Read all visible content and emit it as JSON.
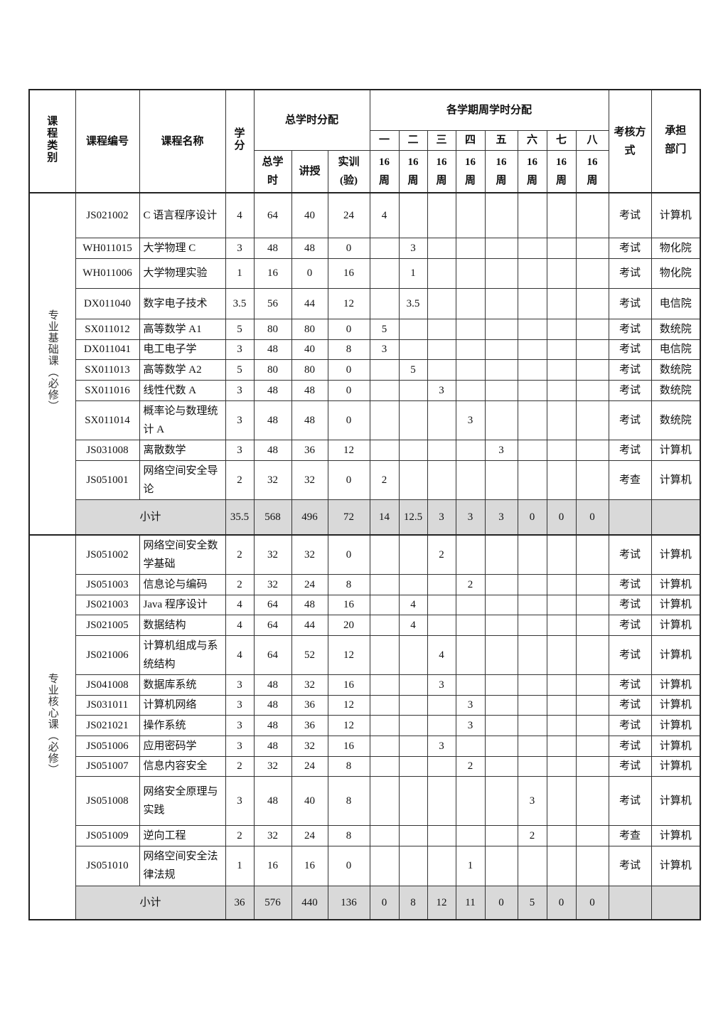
{
  "header": {
    "category": "课程类别",
    "code": "课程编号",
    "name": "课程名称",
    "credit": "学分",
    "total_group": "总学时分配",
    "total_hours": "总学时",
    "lecture": "讲授",
    "lab": "实训(验)",
    "semester_group": "各学期周学时分配",
    "semesters": [
      "一",
      "二",
      "三",
      "四",
      "五",
      "六",
      "七",
      "八"
    ],
    "weeks": [
      "16周",
      "16周",
      "16周",
      "16周",
      "16周",
      "16周",
      "16周",
      "16周"
    ],
    "exam": "考核方式",
    "dept": "承担部门"
  },
  "sections": [
    {
      "category": "专业基础课（必修）",
      "rows": [
        {
          "code": "JS021002",
          "name": "C 语言程序设计",
          "credit": "4",
          "total": "64",
          "lecture": "40",
          "lab": "24",
          "sem": [
            "4",
            "",
            "",
            "",
            "",
            "",
            "",
            ""
          ],
          "exam": "考试",
          "dept": "计算机"
        },
        {
          "code": "WH011015",
          "name": "大学物理 C",
          "credit": "3",
          "total": "48",
          "lecture": "48",
          "lab": "0",
          "sem": [
            "",
            "3",
            "",
            "",
            "",
            "",
            "",
            ""
          ],
          "exam": "考试",
          "dept": "物化院"
        },
        {
          "code": "WH011006",
          "name": "大学物理实验",
          "credit": "1",
          "total": "16",
          "lecture": "0",
          "lab": "16",
          "sem": [
            "",
            "1",
            "",
            "",
            "",
            "",
            "",
            ""
          ],
          "exam": "考试",
          "dept": "物化院"
        },
        {
          "code": "DX011040",
          "name": "数字电子技术",
          "credit": "3.5",
          "total": "56",
          "lecture": "44",
          "lab": "12",
          "sem": [
            "",
            "3.5",
            "",
            "",
            "",
            "",
            "",
            ""
          ],
          "exam": "考试",
          "dept": "电信院"
        },
        {
          "code": "SX011012",
          "name": "高等数学 A1",
          "credit": "5",
          "total": "80",
          "lecture": "80",
          "lab": "0",
          "sem": [
            "5",
            "",
            "",
            "",
            "",
            "",
            "",
            ""
          ],
          "exam": "考试",
          "dept": "数统院"
        },
        {
          "code": "DX011041",
          "name": "电工电子学",
          "credit": "3",
          "total": "48",
          "lecture": "40",
          "lab": "8",
          "sem": [
            "3",
            "",
            "",
            "",
            "",
            "",
            "",
            ""
          ],
          "exam": "考试",
          "dept": "电信院"
        },
        {
          "code": "SX011013",
          "name": "高等数学 A2",
          "credit": "5",
          "total": "80",
          "lecture": "80",
          "lab": "0",
          "sem": [
            "",
            "5",
            "",
            "",
            "",
            "",
            "",
            ""
          ],
          "exam": "考试",
          "dept": "数统院"
        },
        {
          "code": "SX011016",
          "name": "线性代数 A",
          "credit": "3",
          "total": "48",
          "lecture": "48",
          "lab": "0",
          "sem": [
            "",
            "",
            "3",
            "",
            "",
            "",
            "",
            ""
          ],
          "exam": "考试",
          "dept": "数统院"
        },
        {
          "code": "SX011014",
          "name": "概率论与数理统计 A",
          "credit": "3",
          "total": "48",
          "lecture": "48",
          "lab": "0",
          "sem": [
            "",
            "",
            "",
            "3",
            "",
            "",
            "",
            ""
          ],
          "exam": "考试",
          "dept": "数统院"
        },
        {
          "code": "JS031008",
          "name": "离散数学",
          "credit": "3",
          "total": "48",
          "lecture": "36",
          "lab": "12",
          "sem": [
            "",
            "",
            "",
            "",
            "3",
            "",
            "",
            ""
          ],
          "exam": "考试",
          "dept": "计算机"
        },
        {
          "code": "JS051001",
          "name": "网络空间安全导论",
          "credit": "2",
          "total": "32",
          "lecture": "32",
          "lab": "0",
          "sem": [
            "2",
            "",
            "",
            "",
            "",
            "",
            "",
            ""
          ],
          "exam": "考查",
          "dept": "计算机"
        }
      ],
      "subtotal": {
        "label": "小计",
        "credit": "35.5",
        "total": "568",
        "lecture": "496",
        "lab": "72",
        "sem": [
          "14",
          "12.5",
          "3",
          "3",
          "3",
          "0",
          "0",
          "0"
        ]
      }
    },
    {
      "category": "专业核心课（必修）",
      "rows": [
        {
          "code": "JS051002",
          "name": "网络空间安全数学基础",
          "credit": "2",
          "total": "32",
          "lecture": "32",
          "lab": "0",
          "sem": [
            "",
            "",
            "2",
            "",
            "",
            "",
            "",
            ""
          ],
          "exam": "考试",
          "dept": "计算机"
        },
        {
          "code": "JS051003",
          "name": "信息论与编码",
          "credit": "2",
          "total": "32",
          "lecture": "24",
          "lab": "8",
          "sem": [
            "",
            "",
            "",
            "2",
            "",
            "",
            "",
            ""
          ],
          "exam": "考试",
          "dept": "计算机"
        },
        {
          "code": "JS021003",
          "name": "Java 程序设计",
          "credit": "4",
          "total": "64",
          "lecture": "48",
          "lab": "16",
          "sem": [
            "",
            "4",
            "",
            "",
            "",
            "",
            "",
            ""
          ],
          "exam": "考试",
          "dept": "计算机"
        },
        {
          "code": "JS021005",
          "name": "数据结构",
          "credit": "4",
          "total": "64",
          "lecture": "44",
          "lab": "20",
          "sem": [
            "",
            "4",
            "",
            "",
            "",
            "",
            "",
            ""
          ],
          "exam": "考试",
          "dept": "计算机"
        },
        {
          "code": "JS021006",
          "name": "计算机组成与系统结构",
          "credit": "4",
          "total": "64",
          "lecture": "52",
          "lab": "12",
          "sem": [
            "",
            "",
            "4",
            "",
            "",
            "",
            "",
            ""
          ],
          "exam": "考试",
          "dept": "计算机"
        },
        {
          "code": "JS041008",
          "name": "数据库系统",
          "credit": "3",
          "total": "48",
          "lecture": "32",
          "lab": "16",
          "sem": [
            "",
            "",
            "3",
            "",
            "",
            "",
            "",
            ""
          ],
          "exam": "考试",
          "dept": "计算机"
        },
        {
          "code": "JS031011",
          "name": "计算机网络",
          "credit": "3",
          "total": "48",
          "lecture": "36",
          "lab": "12",
          "sem": [
            "",
            "",
            "",
            "3",
            "",
            "",
            "",
            ""
          ],
          "exam": "考试",
          "dept": "计算机"
        },
        {
          "code": "JS021021",
          "name": "操作系统",
          "credit": "3",
          "total": "48",
          "lecture": "36",
          "lab": "12",
          "sem": [
            "",
            "",
            "",
            "3",
            "",
            "",
            "",
            ""
          ],
          "exam": "考试",
          "dept": "计算机"
        },
        {
          "code": "JS051006",
          "name": "应用密码学",
          "credit": "3",
          "total": "48",
          "lecture": "32",
          "lab": "16",
          "sem": [
            "",
            "",
            "3",
            "",
            "",
            "",
            "",
            ""
          ],
          "exam": "考试",
          "dept": "计算机"
        },
        {
          "code": "JS051007",
          "name": "信息内容安全",
          "credit": "2",
          "total": "32",
          "lecture": "24",
          "lab": "8",
          "sem": [
            "",
            "",
            "",
            "2",
            "",
            "",
            "",
            ""
          ],
          "exam": "考试",
          "dept": "计算机"
        },
        {
          "code": "JS051008",
          "name": "网络安全原理与实践",
          "credit": "3",
          "total": "48",
          "lecture": "40",
          "lab": "8",
          "sem": [
            "",
            "",
            "",
            "",
            "",
            "3",
            "",
            ""
          ],
          "exam": "考试",
          "dept": "计算机"
        },
        {
          "code": "JS051009",
          "name": "逆向工程",
          "credit": "2",
          "total": "32",
          "lecture": "24",
          "lab": "8",
          "sem": [
            "",
            "",
            "",
            "",
            "",
            "2",
            "",
            ""
          ],
          "exam": "考查",
          "dept": "计算机"
        },
        {
          "code": "JS051010",
          "name": "网络空间安全法律法规",
          "credit": "1",
          "total": "16",
          "lecture": "16",
          "lab": "0",
          "sem": [
            "",
            "",
            "",
            "1",
            "",
            "",
            "",
            ""
          ],
          "exam": "考试",
          "dept": "计算机"
        }
      ],
      "subtotal": {
        "label": "小计",
        "credit": "36",
        "total": "576",
        "lecture": "440",
        "lab": "136",
        "sem": [
          "0",
          "8",
          "12",
          "11",
          "0",
          "5",
          "0",
          "0"
        ]
      }
    }
  ]
}
